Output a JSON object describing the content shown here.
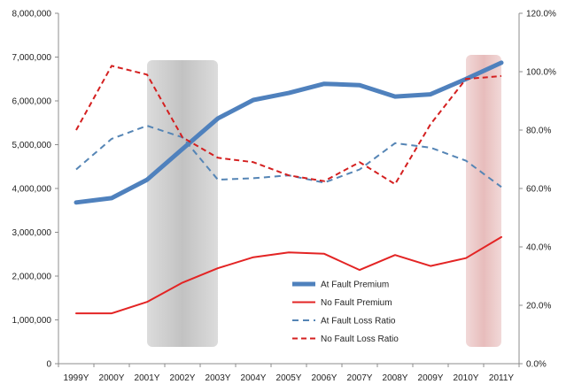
{
  "chart_data": {
    "type": "line",
    "title": "",
    "xlabel": "",
    "ylabel": "",
    "categories": [
      "1999Y",
      "2000Y",
      "2001Y",
      "2002Y",
      "2003Y",
      "2004Y",
      "2005Y",
      "2006Y",
      "2007Y",
      "2008Y",
      "2009Y",
      "2010Y",
      "2011Y"
    ],
    "left_axis": {
      "ylim": [
        0,
        8000000
      ],
      "ticks": [
        0,
        1000000,
        2000000,
        3000000,
        4000000,
        5000000,
        6000000,
        7000000,
        8000000
      ],
      "tick_labels": [
        "0",
        "1,000,000",
        "2,000,000",
        "3,000,000",
        "4,000,000",
        "5,000,000",
        "6,000,000",
        "7,000,000",
        "8,000,000"
      ]
    },
    "right_axis": {
      "ylim": [
        0,
        120
      ],
      "ticks": [
        0,
        20,
        40,
        60,
        80,
        100,
        120
      ],
      "tick_labels": [
        "0.0%",
        "20.0%",
        "40.0%",
        "60.0%",
        "80.0%",
        "100.0%",
        "120.0%"
      ]
    },
    "shaded_regions": [
      {
        "from": "2001Y",
        "to": "2003Y",
        "color": "#bfbfbf"
      },
      {
        "from": "2010Y",
        "to": "2011Y",
        "color": "#e6b9b8"
      }
    ],
    "series": [
      {
        "name": "At Fault Premium",
        "axis": "left",
        "style": "solid-thick",
        "color": "#4f81bd",
        "values": [
          3680000,
          3780000,
          4200000,
          4900000,
          5600000,
          6020000,
          6180000,
          6390000,
          6360000,
          6100000,
          6150000,
          6500000,
          6870000
        ]
      },
      {
        "name": "No Fault Premium",
        "axis": "left",
        "style": "solid",
        "color": "#e32424",
        "values": [
          1150000,
          1150000,
          1410000,
          1850000,
          2180000,
          2430000,
          2540000,
          2510000,
          2140000,
          2480000,
          2230000,
          2410000,
          2890000
        ]
      },
      {
        "name": "At Fault Loss Ratio",
        "axis": "right",
        "style": "dashed",
        "color": "#5585b5",
        "values": [
          66.5,
          77,
          81.5,
          77.5,
          63,
          63.5,
          64.5,
          62,
          66.5,
          75.5,
          74,
          69.5,
          60.5
        ]
      },
      {
        "name": "No Fault Loss Ratio",
        "axis": "right",
        "style": "dashed",
        "color": "#d42020",
        "values": [
          80,
          102,
          99,
          77.5,
          70.5,
          69,
          64.5,
          62.5,
          69,
          61.5,
          82,
          97.5,
          98.5
        ]
      }
    ]
  }
}
